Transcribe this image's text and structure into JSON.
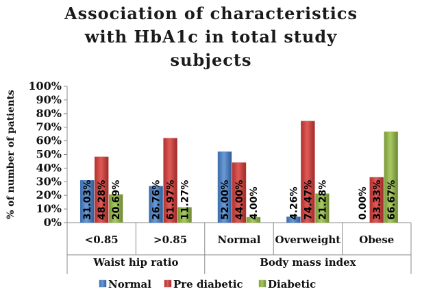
{
  "chart_data": {
    "type": "bar",
    "title_lines": [
      "Association of characteristics",
      "with HbA1c in total study",
      "subjects"
    ],
    "ylabel": "% of number of patients",
    "xlabel": "",
    "ylim": [
      0,
      100
    ],
    "yticks": [
      0,
      10,
      20,
      30,
      40,
      50,
      60,
      70,
      80,
      90,
      100
    ],
    "ytick_labels": [
      "0%",
      "10%",
      "20%",
      "30%",
      "40%",
      "50%",
      "60%",
      "70%",
      "80%",
      "90%",
      "100%"
    ],
    "categories": [
      "<0.85",
      ">0.85",
      "Normal",
      "Overweight",
      "Obese"
    ],
    "groups": [
      {
        "label": "Waist hip ratio",
        "categories": [
          "<0.85",
          ">0.85"
        ]
      },
      {
        "label": "Body mass index",
        "categories": [
          "Normal",
          "Overweight",
          "Obese"
        ]
      }
    ],
    "series": [
      {
        "name": "Normal",
        "color": "#4F81BD",
        "values": [
          31.03,
          26.76,
          52.0,
          4.26,
          0.0
        ],
        "labels": [
          "31.03%",
          "26.76%",
          "52.00%",
          "4.26%",
          "0.00%"
        ]
      },
      {
        "name": "Pre diabetic",
        "color": "#C0504D",
        "values": [
          48.28,
          61.97,
          44.0,
          74.47,
          33.33
        ],
        "labels": [
          "48.28%",
          "61.97%",
          "44.00%",
          "74.47%",
          "33.33%"
        ]
      },
      {
        "name": "Diabetic",
        "color": "#9BBB59",
        "values": [
          20.69,
          11.27,
          4.0,
          21.28,
          66.67
        ],
        "labels": [
          "20.69%",
          "11.27%",
          "4.00%",
          "21.28%",
          "66.67%"
        ]
      }
    ],
    "legend_position": "bottom",
    "grid": false
  }
}
